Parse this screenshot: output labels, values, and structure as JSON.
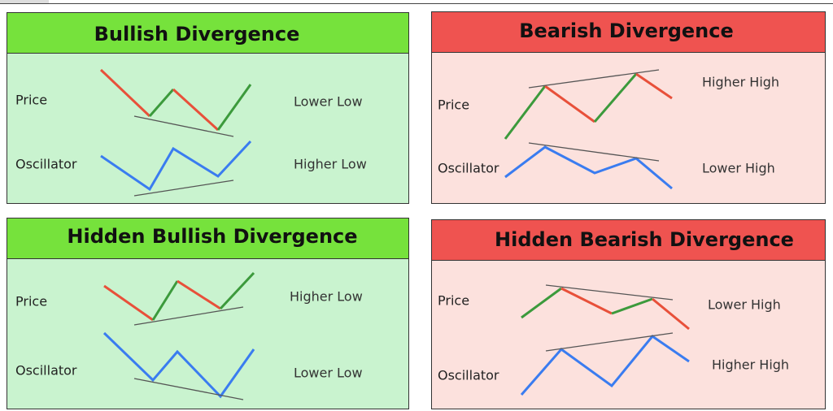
{
  "panels": [
    {
      "title": "Bullish Divergence",
      "rows": [
        {
          "label": "Price",
          "note": "Lower Low"
        },
        {
          "label": "Oscillator",
          "note": "Higher Low"
        }
      ]
    },
    {
      "title": "Bearish Divergence",
      "rows": [
        {
          "label": "Price",
          "note": "Higher High"
        },
        {
          "label": "Oscillator",
          "note": "Lower High"
        }
      ]
    },
    {
      "title": "Hidden Bullish Divergence",
      "rows": [
        {
          "label": "Price",
          "note": "Higher Low"
        },
        {
          "label": "Oscillator",
          "note": "Lower Low"
        }
      ]
    },
    {
      "title": "Hidden Bearish Divergence",
      "rows": [
        {
          "label": "Price",
          "note": "Lower High"
        },
        {
          "label": "Oscillator",
          "note": "Higher High"
        }
      ]
    }
  ]
}
